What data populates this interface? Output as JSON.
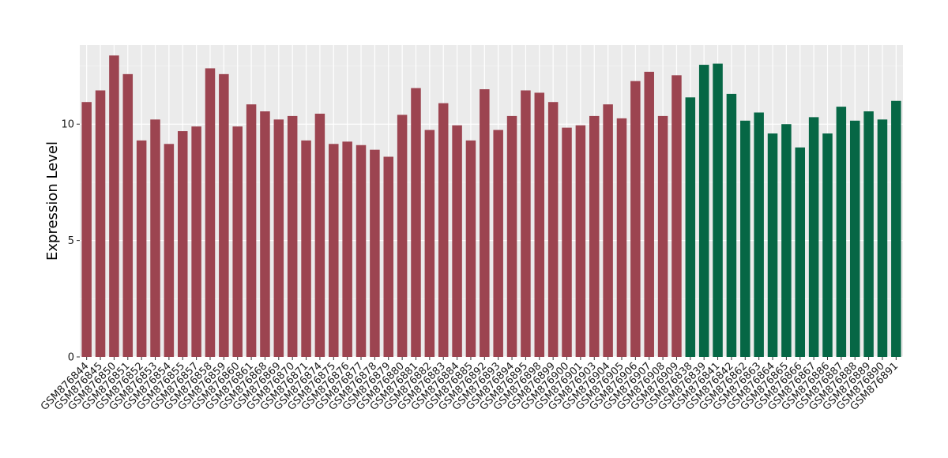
{
  "chart_data": {
    "type": "bar",
    "title": "",
    "xlabel": "",
    "ylabel": "Expression Level",
    "ylim": [
      0,
      13.4
    ],
    "yticks": [
      0,
      5,
      10
    ],
    "grid": true,
    "panel_color": "#ebebeb",
    "series_colors": {
      "group1": "#9c4450",
      "group2": "#066745"
    },
    "categories": [
      "GSM876844",
      "GSM876845",
      "GSM876850",
      "GSM876851",
      "GSM876852",
      "GSM876853",
      "GSM876854",
      "GSM876855",
      "GSM876857",
      "GSM876858",
      "GSM876859",
      "GSM876860",
      "GSM876861",
      "GSM876868",
      "GSM876869",
      "GSM876870",
      "GSM876871",
      "GSM876874",
      "GSM876875",
      "GSM876876",
      "GSM876877",
      "GSM876878",
      "GSM876879",
      "GSM876880",
      "GSM876881",
      "GSM876882",
      "GSM876883",
      "GSM876884",
      "GSM876885",
      "GSM876892",
      "GSM876893",
      "GSM876894",
      "GSM876895",
      "GSM876898",
      "GSM876899",
      "GSM876900",
      "GSM876901",
      "GSM876903",
      "GSM876904",
      "GSM876905",
      "GSM876906",
      "GSM876907",
      "GSM876908",
      "GSM876909",
      "GSM876838",
      "GSM876839",
      "GSM876841",
      "GSM876842",
      "GSM876862",
      "GSM876863",
      "GSM876864",
      "GSM876865",
      "GSM876866",
      "GSM876867",
      "GSM876886",
      "GSM876887",
      "GSM876888",
      "GSM876889",
      "GSM876890",
      "GSM876891"
    ],
    "values": [
      10.95,
      11.45,
      12.95,
      12.15,
      9.3,
      10.2,
      9.15,
      9.7,
      9.9,
      12.4,
      12.15,
      9.9,
      10.85,
      10.55,
      10.2,
      10.35,
      9.3,
      10.45,
      9.15,
      9.25,
      9.1,
      8.9,
      8.6,
      10.4,
      11.55,
      9.75,
      10.9,
      9.95,
      9.3,
      11.5,
      9.75,
      10.35,
      11.45,
      11.35,
      10.95,
      9.85,
      9.95,
      10.35,
      10.85,
      10.25,
      11.85,
      12.25,
      10.35,
      12.1,
      11.15,
      12.55,
      12.6,
      11.3,
      10.15,
      10.5,
      9.6,
      10.0,
      9.0,
      10.3,
      9.6,
      10.75,
      10.15,
      10.55,
      10.2,
      11.0
    ],
    "groups": [
      "group1",
      "group1",
      "group1",
      "group1",
      "group1",
      "group1",
      "group1",
      "group1",
      "group1",
      "group1",
      "group1",
      "group1",
      "group1",
      "group1",
      "group1",
      "group1",
      "group1",
      "group1",
      "group1",
      "group1",
      "group1",
      "group1",
      "group1",
      "group1",
      "group1",
      "group1",
      "group1",
      "group1",
      "group1",
      "group1",
      "group1",
      "group1",
      "group1",
      "group1",
      "group1",
      "group1",
      "group1",
      "group1",
      "group1",
      "group1",
      "group1",
      "group1",
      "group1",
      "group1",
      "group2",
      "group2",
      "group2",
      "group2",
      "group2",
      "group2",
      "group2",
      "group2",
      "group2",
      "group2",
      "group2",
      "group2",
      "group2",
      "group2",
      "group2",
      "group2"
    ]
  }
}
